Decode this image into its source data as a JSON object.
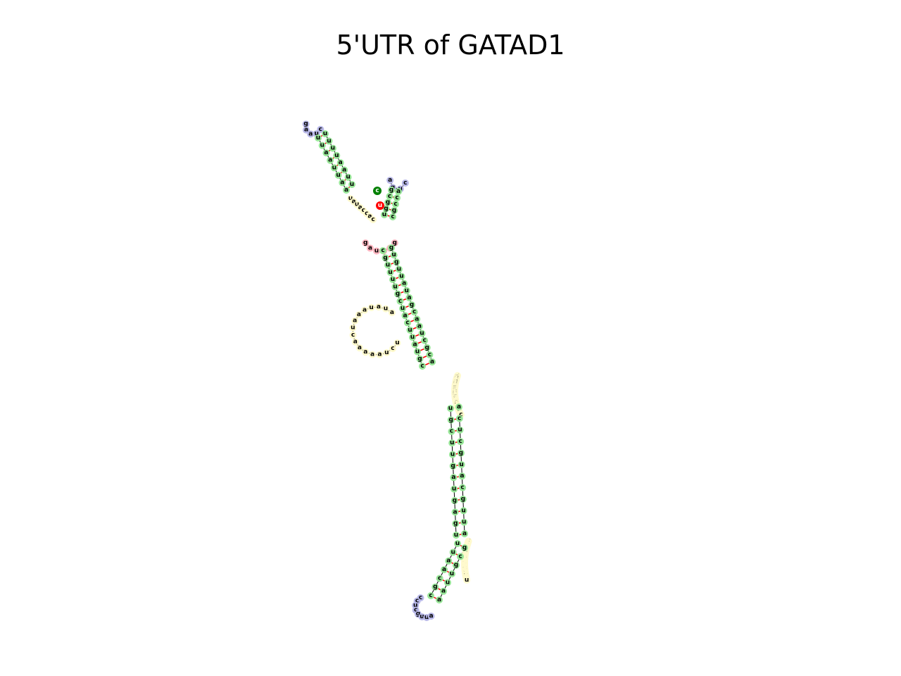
{
  "title": "5'UTR of GATAD1",
  "colors": {
    "stem": "#98e698",
    "hairpin_loop": "#b8b8e8",
    "interior_loop": "#ffb6c1",
    "multiloop_exterior": "#fffacd",
    "backbone": "#000000",
    "base_pair": "#ff0000",
    "sequence_start": "#008000",
    "sequence_end": "#ff0000"
  },
  "legend_markers": {
    "start": "c",
    "end": "u"
  },
  "regions": {
    "hairpin_top_left": [
      "g",
      "a",
      "a",
      "u",
      "c"
    ],
    "stem_top_left_a": [
      "u",
      "u",
      "a",
      "a",
      "u",
      "u",
      "a",
      "a"
    ],
    "stem_top_left_b": [
      "u",
      "u",
      "u",
      "u",
      "a",
      "a",
      "u",
      "u"
    ],
    "hairpin_top_right": [
      "a",
      "g",
      "u",
      "c"
    ],
    "stem_top_right_a": [
      "g",
      "c",
      "g",
      "g",
      "u"
    ],
    "stem_top_right_b": [
      "a",
      "c",
      "c",
      "g",
      "c"
    ],
    "junction_center": [
      "u",
      "a",
      "u",
      "a",
      "c",
      "c",
      "a",
      "c"
    ],
    "interior_pink": [
      "g",
      "a",
      "u",
      "g",
      "c",
      "g"
    ],
    "stem_main_a": [
      "c",
      "g",
      "u",
      "u",
      "u",
      "u",
      "g",
      "c",
      "u",
      "a",
      "c",
      "u",
      "u",
      "a",
      "u",
      "g",
      "c"
    ],
    "stem_main_b": [
      "g",
      "u",
      "g",
      "u",
      "u",
      "a",
      "u",
      "a",
      "g",
      "c",
      "a",
      "a",
      "u",
      "c",
      "g",
      "c",
      "a"
    ],
    "loop_left": [
      "a",
      "u",
      "a",
      "u",
      "a",
      "a",
      "a",
      "u",
      "c",
      "a",
      "a",
      "a",
      "a",
      "a",
      "u",
      "c",
      "u"
    ],
    "loop_right_upper": [
      "c",
      "a",
      "u",
      "u",
      "c",
      "g",
      "u",
      "u",
      "c",
      "a",
      "a",
      "a",
      "g",
      "u",
      "u",
      "u",
      "c",
      "a",
      "a",
      "c",
      "c",
      "g",
      "u",
      "c",
      "a",
      "u",
      "u",
      "u",
      "u",
      "c",
      "c"
    ],
    "stem_lower_a": [
      "u",
      "g",
      "c",
      "u",
      "u",
      "g",
      "a",
      "u",
      "g",
      "a",
      "g",
      "u"
    ],
    "stem_lower_b": [
      "a",
      "c",
      "u",
      "c",
      "g",
      "u",
      "a",
      "c",
      "g",
      "u",
      "u",
      "a"
    ],
    "loop_right_lower": [
      "u",
      "a",
      "u",
      "a",
      "c",
      "a",
      "a",
      "c",
      "c",
      "a",
      "c",
      "g",
      "u",
      "a",
      "a",
      "g",
      "u",
      "u",
      "c",
      "a",
      "a",
      "a",
      "c",
      "a",
      "a",
      "g",
      "u",
      "g",
      "c",
      "a",
      "a",
      "c",
      "u",
      "u",
      "a",
      "c",
      "u"
    ],
    "stem_bottom_a": [
      "u",
      "u",
      "a",
      "a",
      "c",
      "g",
      "c"
    ],
    "stem_bottom_b": [
      "g",
      "c",
      "g",
      "u",
      "u",
      "a",
      "a"
    ],
    "hairpin_bottom": [
      "c",
      "c",
      "u",
      "c",
      "g",
      "u",
      "u",
      "a"
    ]
  }
}
